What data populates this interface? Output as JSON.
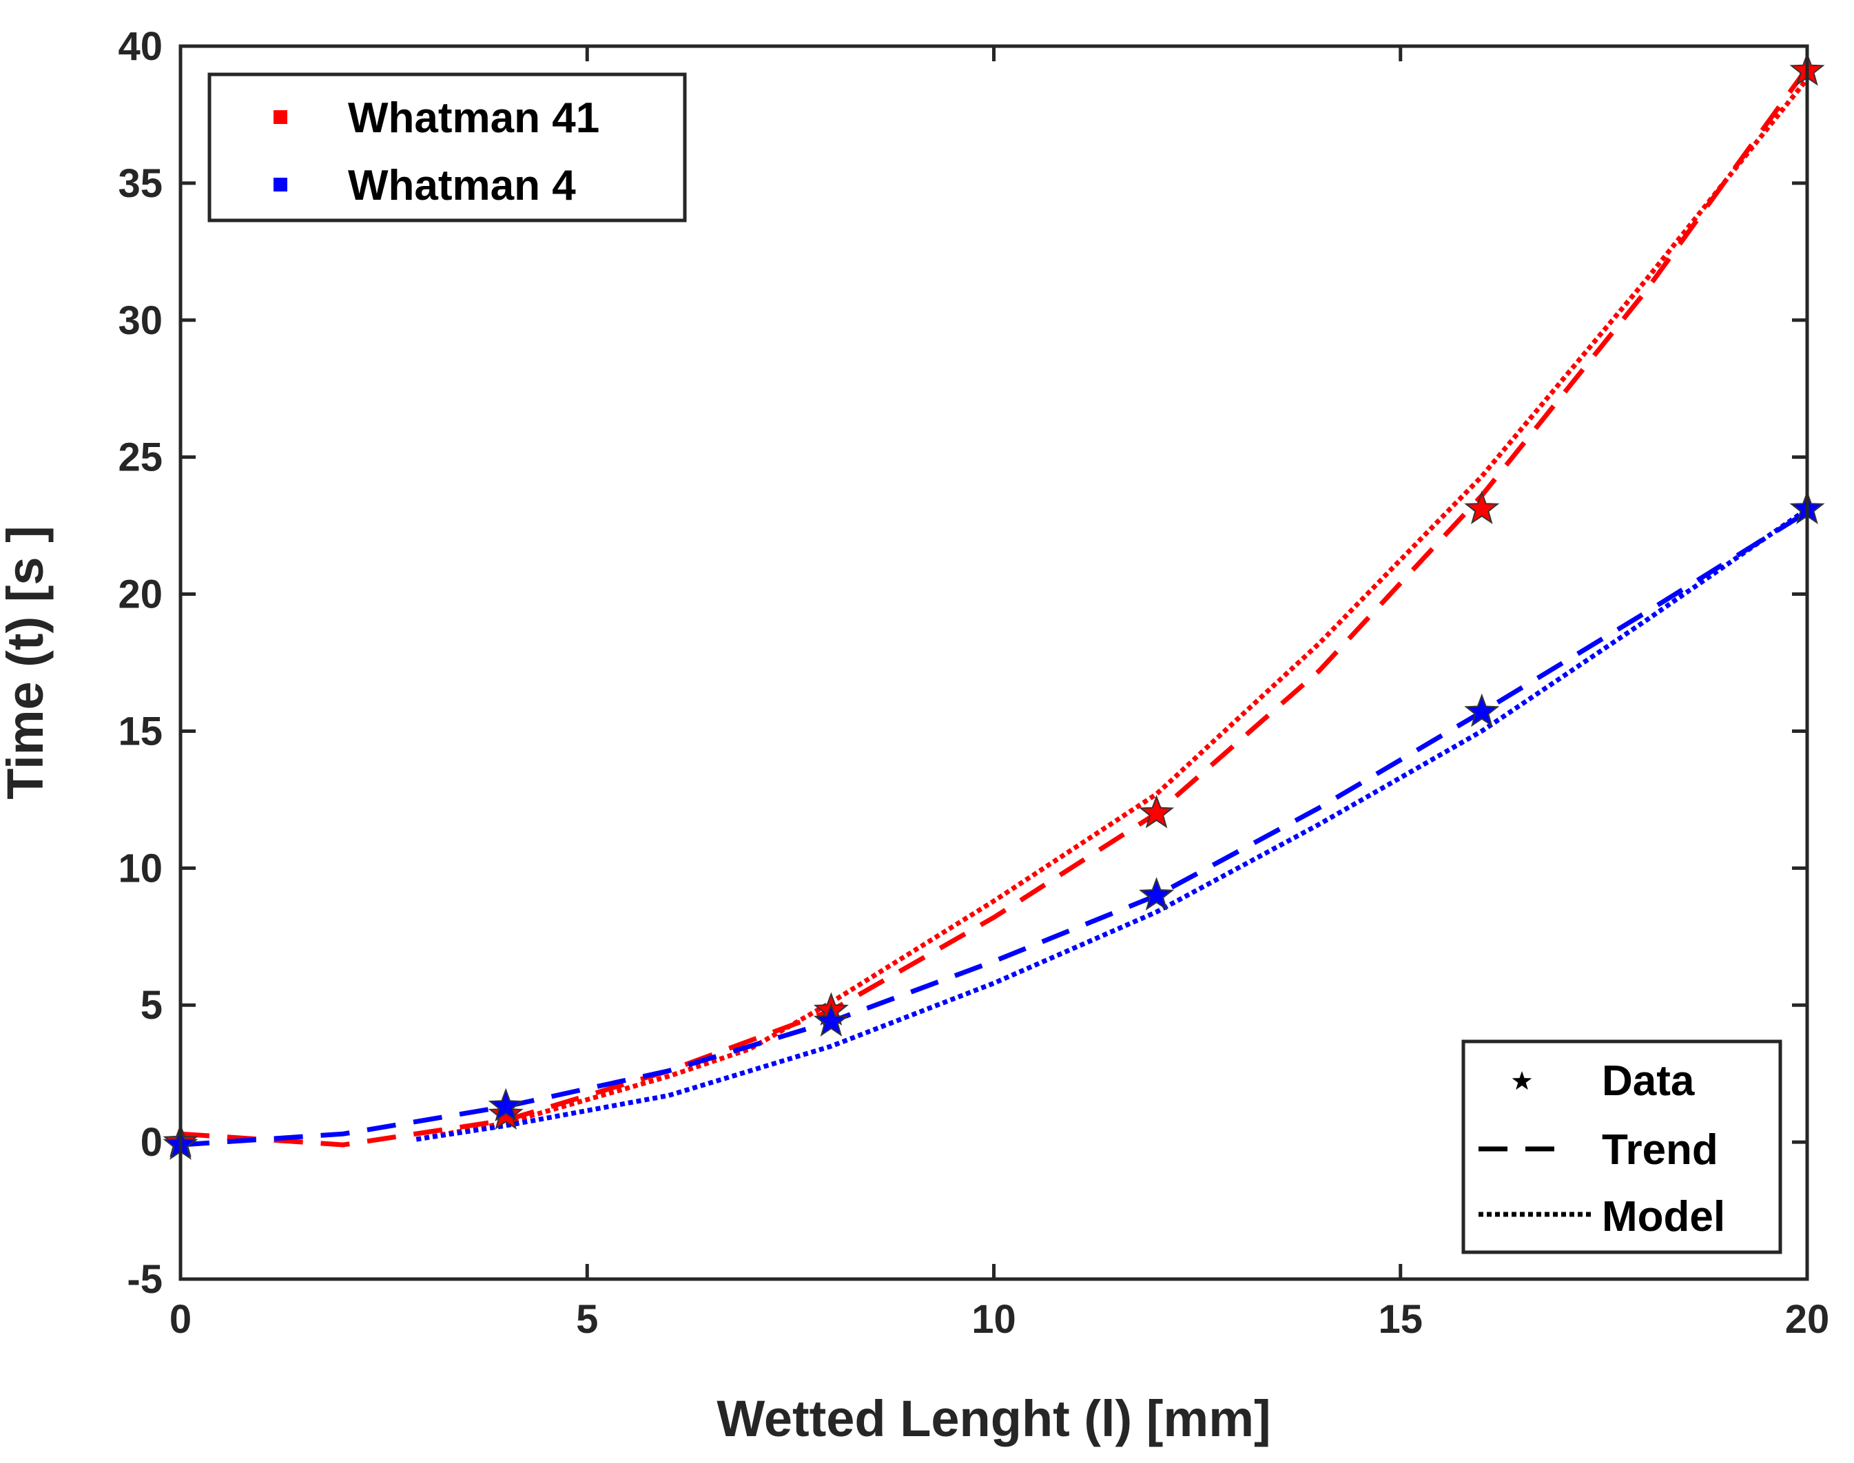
{
  "chart_data": {
    "type": "line",
    "title": "",
    "xlabel": "Wetted Lenght (l) [mm]",
    "ylabel": "Time (t) [s ]",
    "xlim": [
      0,
      20
    ],
    "ylim": [
      -5,
      40
    ],
    "xticks": [
      0,
      5,
      10,
      15,
      20
    ],
    "xtick_labels": [
      "0",
      "5",
      "10",
      "15",
      "20"
    ],
    "yticks": [
      -5,
      0,
      5,
      10,
      15,
      20,
      25,
      30,
      35,
      40
    ],
    "ytick_labels": [
      "-5",
      "0",
      "5",
      "10",
      "15",
      "20",
      "25",
      "30",
      "35",
      "40"
    ],
    "grid": false,
    "series": [
      {
        "name": "Whatman 41",
        "color": "#ff0000",
        "data": {
          "x": [
            0,
            4,
            8,
            12,
            16,
            20
          ],
          "y": [
            0,
            1.0,
            4.8,
            12.0,
            23.1,
            39.1
          ]
        },
        "trend": {
          "x": [
            0,
            2,
            4,
            6,
            8,
            10,
            12,
            14,
            16,
            18,
            20
          ],
          "y": [
            0.3,
            -0.1,
            0.8,
            2.6,
            4.8,
            8.2,
            12.0,
            17.2,
            23.6,
            31.0,
            39.2
          ]
        },
        "model": {
          "x": [
            2.9,
            4,
            6,
            7,
            8,
            10,
            12,
            14,
            16,
            18,
            20
          ],
          "y": [
            0.1,
            0.7,
            2.4,
            3.4,
            5.1,
            8.8,
            12.7,
            18.2,
            24.3,
            31.4,
            38.8
          ]
        }
      },
      {
        "name": "Whatman 4",
        "color": "#0000ff",
        "data": {
          "x": [
            0,
            4,
            8,
            12,
            16,
            20
          ],
          "y": [
            -0.1,
            1.3,
            4.4,
            9.0,
            15.7,
            23.1
          ]
        },
        "trend": {
          "x": [
            0,
            2,
            4,
            6,
            8,
            10,
            12,
            14,
            16,
            18,
            20
          ],
          "y": [
            -0.1,
            0.3,
            1.3,
            2.6,
            4.4,
            6.6,
            9.0,
            12.2,
            15.7,
            19.3,
            23.0
          ]
        },
        "model": {
          "x": [
            2.9,
            4,
            6,
            8,
            10,
            12,
            14,
            16,
            18,
            20
          ],
          "y": [
            0.1,
            0.6,
            1.7,
            3.5,
            5.8,
            8.4,
            11.6,
            15.0,
            19.0,
            23.1
          ]
        }
      }
    ],
    "legends": {
      "series_legend": {
        "location": "top-left",
        "entries": [
          "Whatman 41",
          "Whatman 4"
        ]
      },
      "style_legend": {
        "location": "bottom-right",
        "entries": [
          "Data",
          "Trend",
          "Model"
        ]
      }
    }
  }
}
